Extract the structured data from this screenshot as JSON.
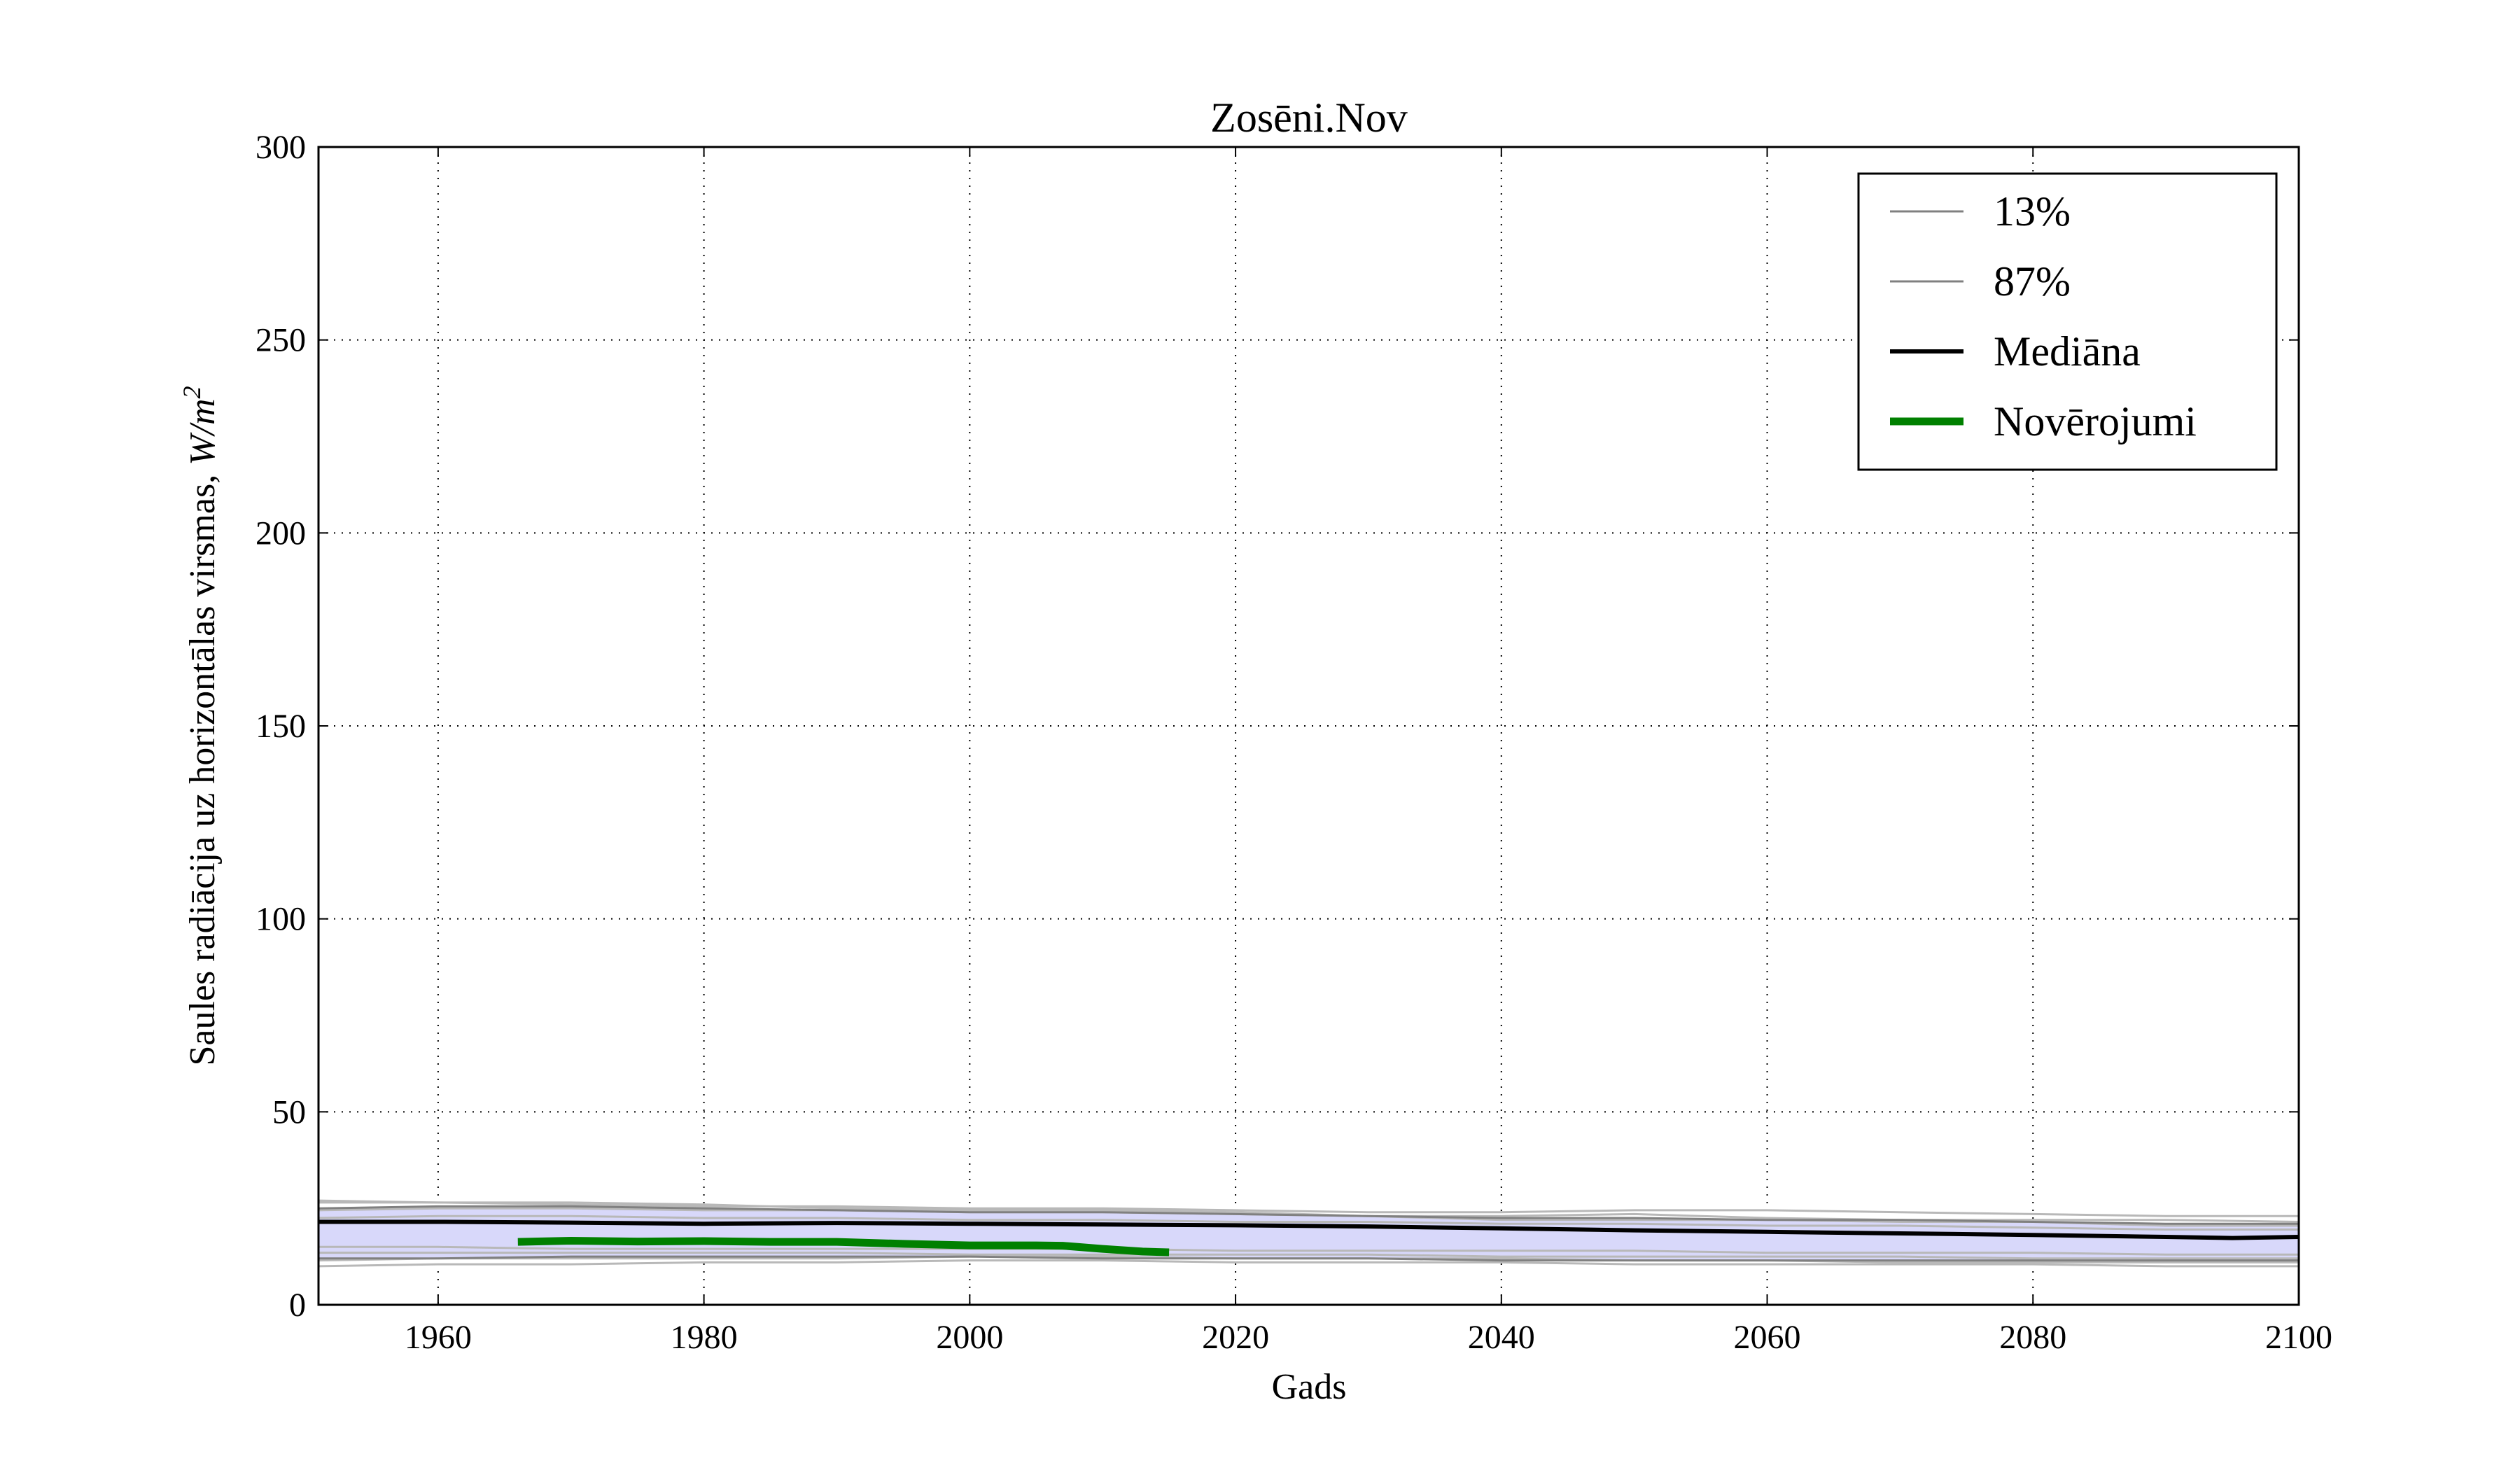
{
  "chart_data": {
    "type": "line",
    "title": "Zosēni.Nov",
    "xlabel": "Gads",
    "ylabel": "Saules radiācija uz horizontālas virsmas, ",
    "ylabel_unit_italic": "W/m",
    "ylabel_unit_sup": "2",
    "xlim": [
      1951,
      2100
    ],
    "ylim": [
      0,
      300
    ],
    "xticks": [
      1960,
      1980,
      2000,
      2020,
      2040,
      2060,
      2080,
      2100
    ],
    "yticks": [
      0,
      50,
      100,
      150,
      200,
      250,
      300
    ],
    "grid": true,
    "legend_position": "top-right",
    "band": {
      "x": [
        1951,
        1960,
        1970,
        1980,
        1990,
        2000,
        2010,
        2020,
        2030,
        2040,
        2050,
        2060,
        2070,
        2080,
        2090,
        2100
      ],
      "lower": [
        12,
        12,
        12.5,
        12.5,
        12.5,
        12.5,
        12,
        12,
        12,
        11.5,
        11.5,
        11.5,
        11.5,
        11.5,
        11.5,
        11.5
      ],
      "upper": [
        25,
        25.5,
        25.5,
        25,
        24.5,
        24,
        24,
        23.5,
        23,
        22.5,
        22.5,
        22,
        22,
        21.5,
        21,
        21
      ]
    },
    "ensemble_members": [
      {
        "values": [
          26.5,
          26.5,
          26.5,
          26,
          25,
          24.5,
          24.5,
          24,
          23,
          23,
          23.5,
          22.5,
          22,
          22,
          22,
          21.5
        ]
      },
      {
        "values": [
          24.5,
          25,
          25,
          24.5,
          24.5,
          24,
          24,
          23.5,
          23,
          22,
          22,
          22,
          21.5,
          21.5,
          20.5,
          20.5
        ]
      },
      {
        "values": [
          22.5,
          23,
          23,
          22.5,
          22.5,
          22,
          22,
          21.5,
          21.5,
          21,
          21,
          20.5,
          20.5,
          20,
          19.5,
          19.5
        ]
      },
      {
        "values": [
          15,
          15,
          14.5,
          14.5,
          14.5,
          14.5,
          14.5,
          14,
          14,
          14,
          14,
          13.5,
          13.5,
          13.5,
          13,
          13
        ]
      },
      {
        "values": [
          13.5,
          13.5,
          13.5,
          13.5,
          13.5,
          13,
          13,
          13,
          13,
          12.5,
          12.5,
          12.5,
          12.5,
          12,
          12,
          12
        ]
      },
      {
        "values": [
          10,
          10.5,
          10.5,
          11,
          11,
          11.5,
          11.5,
          11,
          11,
          11,
          10.5,
          10.5,
          10.5,
          10.5,
          10,
          10
        ]
      },
      {
        "values": [
          27,
          26.5,
          26,
          25.5,
          25.5,
          25,
          25,
          24.5,
          24,
          24,
          24.5,
          24.5,
          24,
          23.5,
          23,
          23
        ]
      },
      {
        "values": [
          11.5,
          12,
          12,
          12,
          12,
          12.5,
          12.5,
          12,
          12,
          12,
          11.5,
          11.5,
          11,
          11,
          11,
          11
        ]
      }
    ],
    "series": [
      {
        "name": "13%",
        "color": "#808080",
        "x": [
          1951,
          1960,
          1970,
          1980,
          1990,
          2000,
          2010,
          2020,
          2030,
          2040,
          2050,
          2060,
          2070,
          2080,
          2090,
          2100
        ],
        "values": [
          12,
          12,
          12.5,
          12.5,
          12.5,
          12.5,
          12,
          12,
          12,
          11.5,
          11.5,
          11.5,
          11.5,
          11.5,
          11.5,
          11.5
        ]
      },
      {
        "name": "87%",
        "color": "#808080",
        "x": [
          1951,
          1960,
          1970,
          1980,
          1990,
          2000,
          2010,
          2020,
          2030,
          2040,
          2050,
          2060,
          2070,
          2080,
          2090,
          2100
        ],
        "values": [
          25,
          25.5,
          25.5,
          25,
          24.5,
          24,
          24,
          23.5,
          23,
          22.5,
          22.5,
          22,
          22,
          21.5,
          21,
          21
        ]
      },
      {
        "name": "Mediāna",
        "color": "#000000",
        "x": [
          1951,
          1960,
          1970,
          1980,
          1990,
          2000,
          2010,
          2020,
          2030,
          2040,
          2050,
          2060,
          2070,
          2080,
          2090,
          2095,
          2100
        ],
        "values": [
          21.5,
          21.5,
          21.3,
          21,
          21.2,
          21,
          20.8,
          20.6,
          20.3,
          19.8,
          19.3,
          18.9,
          18.5,
          18.1,
          17.6,
          17.3,
          17.6
        ]
      },
      {
        "name": "Novērojumi",
        "color": "#008000",
        "x": [
          1966,
          1970,
          1975,
          1980,
          1985,
          1990,
          1995,
          2000,
          2005,
          2007,
          2010,
          2013,
          2015
        ],
        "values": [
          16.3,
          16.6,
          16.4,
          16.5,
          16.3,
          16.3,
          15.8,
          15.4,
          15.4,
          15.3,
          14.5,
          13.8,
          13.6
        ]
      }
    ],
    "colors": {
      "band_fill": "#d8d8fa",
      "ensemble_line": "#b8b8b8",
      "percentile_line": "#808080",
      "median": "#000000",
      "observations": "#008000"
    }
  }
}
